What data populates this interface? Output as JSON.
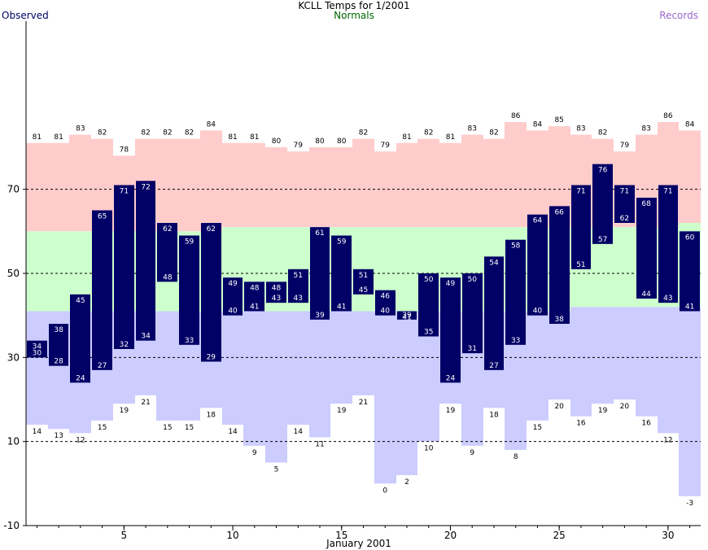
{
  "chart_data": {
    "type": "bar",
    "title": "KCLL Temps for 1/2001",
    "xlabel": "January 2001",
    "ylabel": "",
    "legend": [
      {
        "label": "Observed",
        "color": "#000066"
      },
      {
        "label": "Normals",
        "color": "#006600"
      },
      {
        "label": "Records",
        "color": "#9966cc"
      }
    ],
    "x": [
      1,
      2,
      3,
      4,
      5,
      6,
      7,
      8,
      9,
      10,
      11,
      12,
      13,
      14,
      15,
      16,
      17,
      18,
      19,
      20,
      21,
      22,
      23,
      24,
      25,
      26,
      27,
      28,
      29,
      30,
      31
    ],
    "xlim": [
      0.5,
      31.5
    ],
    "x_ticks": [
      5,
      10,
      15,
      20,
      25,
      30
    ],
    "ylim": [
      -10,
      110
    ],
    "y_ticks": [
      -10,
      10,
      30,
      50,
      70
    ],
    "grid": "dashed at 10, 30, 50, 70",
    "series": [
      {
        "name": "Observed",
        "subseries": "high",
        "values": [
          34,
          38,
          45,
          65,
          71,
          72,
          62,
          59,
          62,
          49,
          48,
          48,
          51,
          61,
          59,
          51,
          46,
          41,
          50,
          49,
          50,
          54,
          58,
          64,
          66,
          71,
          76,
          71,
          68,
          71,
          60
        ]
      },
      {
        "name": "Observed",
        "subseries": "low",
        "values": [
          30,
          28,
          24,
          27,
          32,
          34,
          48,
          33,
          29,
          40,
          41,
          43,
          43,
          39,
          41,
          45,
          40,
          39,
          35,
          24,
          31,
          27,
          33,
          40,
          38,
          51,
          57,
          62,
          44,
          43,
          41
        ]
      },
      {
        "name": "Records",
        "subseries": "high",
        "values": [
          81,
          81,
          83,
          82,
          78,
          82,
          82,
          82,
          84,
          81,
          81,
          80,
          79,
          80,
          80,
          82,
          79,
          81,
          82,
          81,
          83,
          82,
          86,
          84,
          85,
          83,
          82,
          79,
          83,
          86,
          84
        ]
      },
      {
        "name": "Records",
        "subseries": "low",
        "values": [
          14,
          13,
          12,
          15,
          19,
          21,
          15,
          15,
          18,
          14,
          9,
          5,
          14,
          11,
          19,
          21,
          0,
          2,
          10,
          19,
          9,
          18,
          8,
          15,
          20,
          16,
          19,
          20,
          16,
          12,
          -3
        ]
      },
      {
        "name": "Normals",
        "subseries": "high",
        "values": [
          60,
          60,
          60,
          60,
          60,
          60,
          60,
          60,
          60,
          61,
          61,
          61,
          61,
          61,
          61,
          61,
          61,
          61,
          61,
          61,
          61,
          61,
          61,
          61,
          61,
          61,
          61,
          61,
          61,
          61,
          62
        ]
      },
      {
        "name": "Normals",
        "subseries": "low",
        "values": [
          41,
          41,
          41,
          41,
          41,
          41,
          41,
          41,
          41,
          41,
          41,
          41,
          41,
          41,
          41,
          41,
          41,
          41,
          41,
          41,
          41,
          41,
          41,
          41,
          41,
          42,
          42,
          42,
          42,
          42,
          42
        ]
      }
    ],
    "colors": {
      "record_high_band": "#ffcccc",
      "normal_band": "#ccffcc",
      "record_low_band": "#ccccff",
      "observed_bar": "#000066",
      "observed_label": "#ffffff",
      "gridline": "#000000"
    }
  }
}
